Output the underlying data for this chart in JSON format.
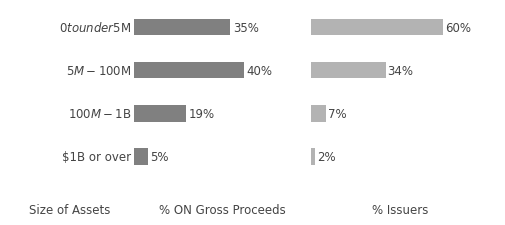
{
  "categories": [
    "$0 to under $5M",
    "$5M-$100M",
    "$100M-$1B",
    "$1B or over"
  ],
  "gross_proceeds": [
    35,
    40,
    19,
    5
  ],
  "issuers": [
    60,
    34,
    7,
    2
  ],
  "gross_color": "#808080",
  "issuers_color": "#b3b3b3",
  "bar_height": 0.38,
  "xlabel_left": "Size of Assets",
  "xlabel_mid": "% ON Gross Proceeds",
  "xlabel_right": "% Issuers",
  "background_color": "#ffffff",
  "label_fontsize": 8.5,
  "axis_label_fontsize": 8.5,
  "category_fontsize": 8.5,
  "gross_max": 40,
  "issuers_max": 60
}
